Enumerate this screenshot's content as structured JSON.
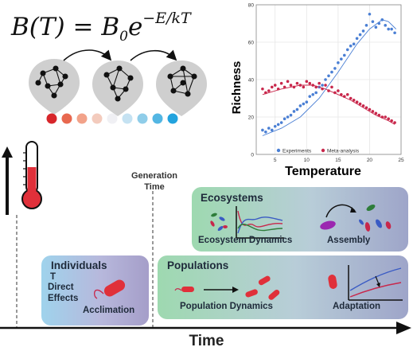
{
  "formula": {
    "lhs": "B(T) = B",
    "sub": "0",
    "base": "e",
    "exponent": "−E/kT"
  },
  "color_scale": [
    "#d7262b",
    "#e8684f",
    "#f2a289",
    "#f3cbbd",
    "#f0f0f4",
    "#c5e2f2",
    "#8fcde9",
    "#53b6e3",
    "#22a3de"
  ],
  "chart_data": {
    "type": "scatter",
    "xlabel": "Temperature",
    "ylabel": "Richness",
    "xlim": [
      2,
      25
    ],
    "ylim": [
      0,
      80
    ],
    "xticks": [
      5,
      10,
      15,
      20,
      25
    ],
    "yticks": [
      0,
      20,
      40,
      60,
      80
    ],
    "legend_placement": "bottom",
    "series": [
      {
        "name": "Experiments",
        "color": "#4a7fd4",
        "x": [
          3,
          3.5,
          4,
          4.5,
          5,
          5.5,
          6,
          6.5,
          7,
          7.5,
          8,
          8.5,
          9,
          9.5,
          10,
          10.5,
          11,
          11.5,
          12,
          12.5,
          13,
          13.5,
          14,
          14.5,
          15,
          15.5,
          16,
          16.5,
          17,
          17.5,
          18,
          18.5,
          19,
          19.5,
          20,
          20.5,
          21,
          21.5,
          22,
          22.5,
          23,
          23.5,
          24
        ],
        "y": [
          13,
          12,
          14,
          13,
          15,
          16,
          17,
          19,
          20,
          21,
          23,
          24,
          26,
          27,
          28,
          31,
          32,
          33,
          36,
          37,
          40,
          42,
          44,
          46,
          49,
          51,
          53,
          56,
          58,
          59,
          62,
          64,
          66,
          69,
          75,
          71,
          68,
          70,
          72,
          69,
          67,
          67,
          65
        ],
        "fit": [
          [
            3,
            10
          ],
          [
            6,
            14
          ],
          [
            9,
            20
          ],
          [
            12,
            30
          ],
          [
            15,
            44
          ],
          [
            18,
            59
          ],
          [
            20,
            67
          ],
          [
            22,
            72
          ],
          [
            23,
            71
          ],
          [
            24.2,
            67
          ]
        ]
      },
      {
        "name": "Meta-analysis",
        "color": "#c8274b",
        "x": [
          3,
          3.5,
          4,
          4.5,
          5,
          5.5,
          6,
          6.5,
          7,
          7.5,
          8,
          8.5,
          9,
          9.5,
          10,
          10.5,
          11,
          11.5,
          12,
          12.5,
          13,
          13.5,
          14,
          14.5,
          15,
          15.5,
          16,
          16.5,
          17,
          17.5,
          18,
          18.5,
          19,
          19.5,
          20,
          20.5,
          21,
          21.5,
          22,
          22.5,
          23,
          23.5,
          24
        ],
        "y": [
          35,
          33,
          34,
          36,
          37,
          35,
          38,
          36,
          39,
          37,
          36,
          38,
          37,
          36,
          39,
          38,
          37,
          36,
          38,
          35,
          37,
          34,
          36,
          33,
          34,
          32,
          31,
          32,
          30,
          29,
          28,
          27,
          26,
          25,
          24,
          23,
          22,
          21,
          20,
          20,
          19,
          18,
          17
        ],
        "fit": [
          [
            3,
            32
          ],
          [
            6,
            35
          ],
          [
            9,
            37
          ],
          [
            11,
            37
          ],
          [
            13,
            35
          ],
          [
            15,
            32
          ],
          [
            17,
            29
          ],
          [
            19,
            25
          ],
          [
            21,
            21
          ],
          [
            23,
            18
          ],
          [
            24,
            16
          ]
        ]
      }
    ]
  },
  "timeline": {
    "y_axis_label": "",
    "x_axis_label": "Time",
    "generation_time": "Generation Time"
  },
  "panels": {
    "individuals": {
      "title": "Individuals",
      "stray": "T",
      "direct_effects": "Direct Effects",
      "acclimation": "Acclimation"
    },
    "populations": {
      "title": "Populations",
      "dynamics": "Population Dynamics",
      "adaptation": "Adaptation"
    },
    "ecosystems": {
      "title": "Ecosystems",
      "dynamics": "Ecosystem Dynamics",
      "assembly": "Assembly"
    }
  }
}
